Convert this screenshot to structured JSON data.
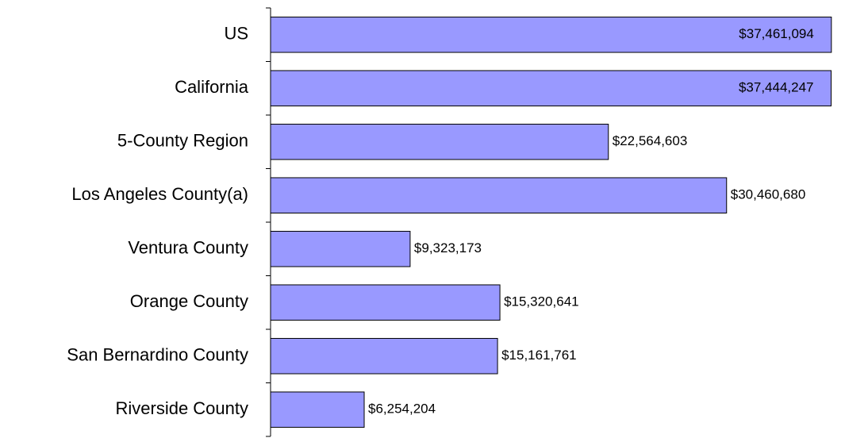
{
  "chart_data": {
    "type": "bar",
    "orientation": "horizontal",
    "categories": [
      "US",
      "California",
      "5-County Region",
      "Los Angeles County(a)",
      "Ventura County",
      "Orange County",
      "San Bernardino County",
      "Riverside County"
    ],
    "values": [
      37461094,
      37444247,
      22564603,
      30460680,
      9323173,
      15320641,
      15161761,
      6254204
    ],
    "value_labels": [
      "$37,461,094",
      "$37,444,247",
      "$22,564,603",
      "$30,460,680",
      "$9,323,173",
      "$15,320,641",
      "$15,161,761",
      "$6,254,204"
    ],
    "color": "#9999ff",
    "xlim": [
      0,
      38000000
    ]
  }
}
